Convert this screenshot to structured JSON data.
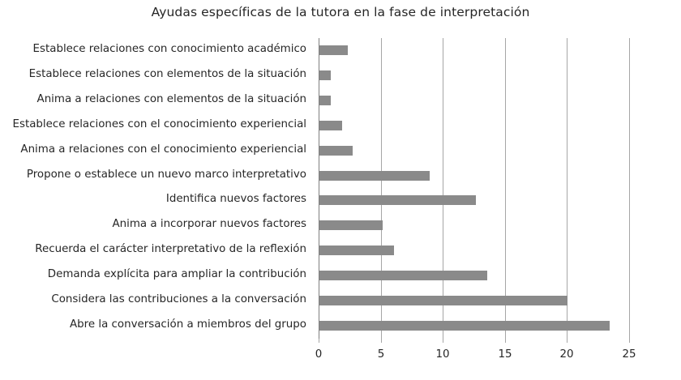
{
  "chart_data": {
    "type": "bar",
    "orientation": "horizontal",
    "title": "Ayudas específicas de la tutora en la fase de interpretación",
    "xlabel": "",
    "ylabel": "",
    "xlim": [
      0,
      25
    ],
    "xticks": [
      "0",
      "5",
      "10",
      "15",
      "20",
      "25"
    ],
    "grid": "vertical",
    "legend": null,
    "bar_color": "#8a8a8a",
    "categories": [
      "Establece relaciones con conocimiento académico",
      "Establece relaciones con elementos de la situación",
      "Anima a relaciones con elementos de la situación",
      "Establece relaciones con el conocimiento experiencial",
      "Anima a relaciones con el conocimiento experiencial",
      "Propone o establece un nuevo marco interpretativo",
      "Identifica nuevos factores",
      "Anima a incorporar nuevos factores",
      "Recuerda el carácter interpretativo de la reflexión",
      "Demanda explícita para ampliar la contribución",
      "Considera las contribuciones a la conversación",
      "Abre la conversación a miembros del grupo"
    ],
    "values": [
      2.3,
      0.9,
      0.9,
      1.8,
      2.7,
      8.9,
      12.6,
      5.1,
      6.0,
      13.5,
      20.0,
      23.4
    ]
  }
}
